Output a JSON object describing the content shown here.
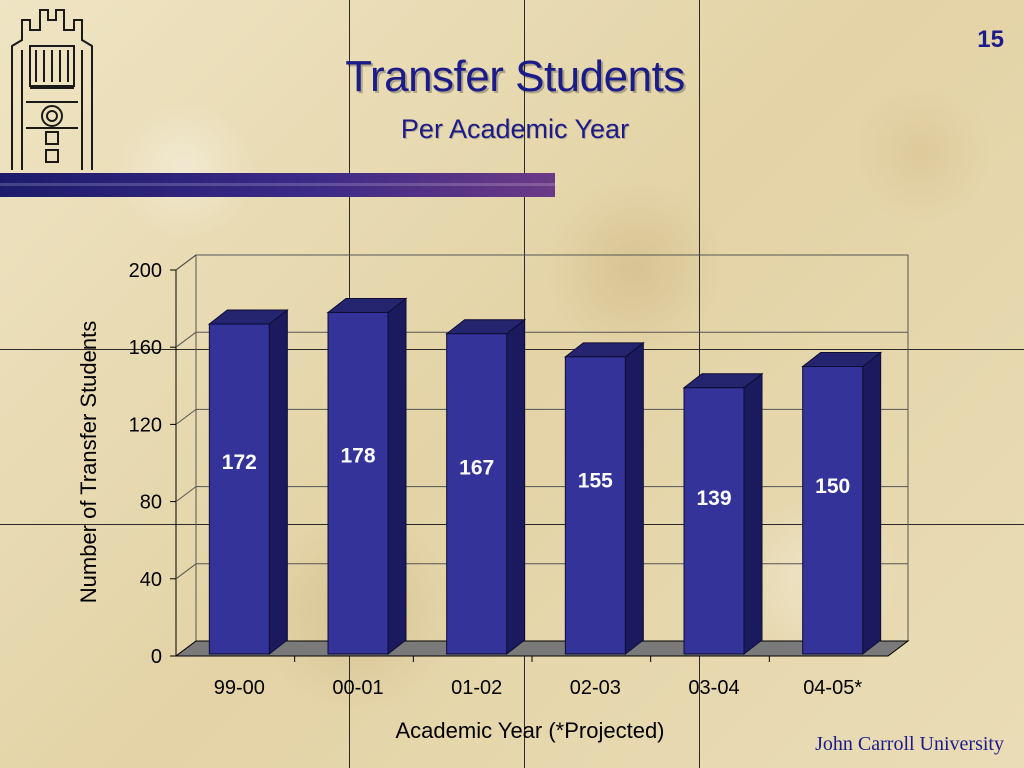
{
  "slide": {
    "title": "Transfer Students",
    "subtitle": "Per Academic Year",
    "page_number": "15",
    "footer": "John Carroll University"
  },
  "colors": {
    "title": "#1c1b8a",
    "bar_front": "#33339a",
    "bar_side": "#1b1a5e",
    "bar_top": "#25246e",
    "floor": "#7a7a7a",
    "data_label": "#ffffff"
  },
  "chart_data": {
    "type": "bar",
    "style": "3d-column",
    "categories": [
      "99-00",
      "00-01",
      "01-02",
      "02-03",
      "03-04",
      "04-05*"
    ],
    "values": [
      172,
      178,
      167,
      155,
      139,
      150
    ],
    "data_labels": [
      "172",
      "178",
      "167",
      "155",
      "139",
      "150"
    ],
    "xlabel": "Academic Year (*Projected)",
    "ylabel": "Number of Transfer Students",
    "ylim": [
      0,
      200
    ],
    "yticks": [
      0,
      40,
      80,
      120,
      160,
      200
    ],
    "ytick_labels": [
      "0",
      "40",
      "80",
      "120",
      "160",
      "200"
    ],
    "grid": true,
    "legend": "none"
  }
}
